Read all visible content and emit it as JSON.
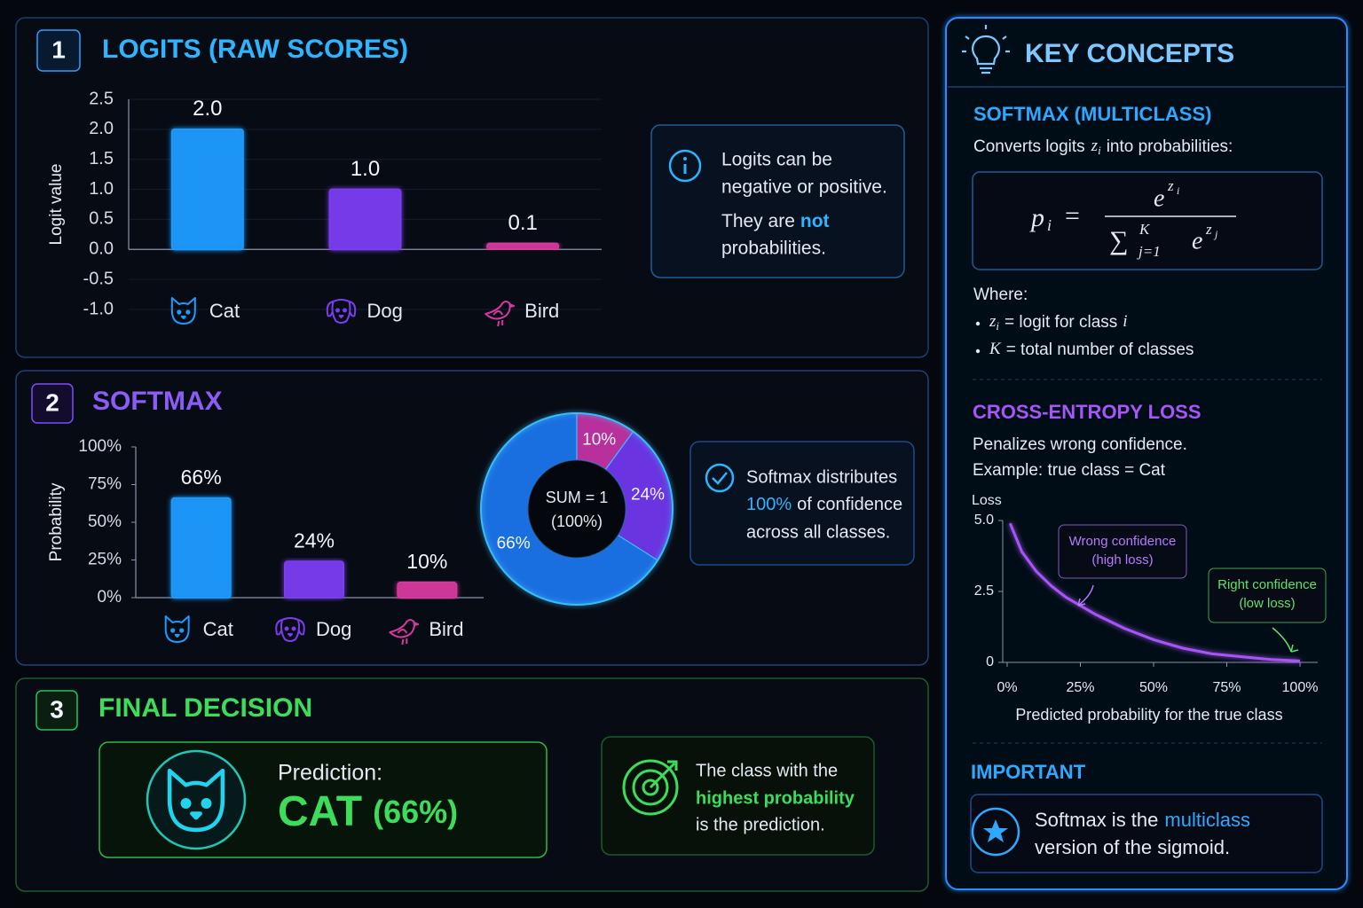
{
  "chart_data": [
    {
      "type": "bar",
      "step": "1",
      "title": "LOGITS (RAW SCORES)",
      "ylabel": "Logit value",
      "categories": [
        "Cat",
        "Dog",
        "Bird"
      ],
      "values": [
        2,
        1,
        0.1
      ],
      "value_labels": [
        "2.0",
        "1.0",
        "0.1"
      ],
      "colors": [
        "#1e9bff",
        "#7b3cf0",
        "#d6389e"
      ],
      "ylim": [
        -1,
        2.5
      ],
      "yticks": [
        {
          "value": -1,
          "label": "-1.0"
        },
        -0.5,
        {
          "value": 0,
          "label": "0.0"
        },
        0.5,
        {
          "value": 1,
          "label": "1.0"
        },
        1.5,
        {
          "value": 2,
          "label": "2.0"
        },
        2.5
      ],
      "grid": true
    },
    {
      "type": "bar",
      "step": "2",
      "title": "SOFTMAX",
      "ylabel": "Probability",
      "categories": [
        "Cat",
        "Dog",
        "Bird"
      ],
      "values": [
        66,
        24,
        10
      ],
      "value_labels": [
        "66%",
        "24%",
        "10%"
      ],
      "colors": [
        "#1e9bff",
        "#7b3cf0",
        "#d6389e"
      ],
      "ylim": [
        0,
        100
      ],
      "yticks": [
        {
          "value": 0,
          "label": "0%"
        },
        {
          "value": 25,
          "label": "25%"
        },
        {
          "value": 50,
          "label": "50%"
        },
        {
          "value": 75,
          "label": "75%"
        },
        {
          "value": 100,
          "label": "100%"
        }
      ],
      "grid": false
    },
    {
      "type": "pie",
      "values": [
        66,
        24,
        10
      ],
      "value_labels": [
        "66%",
        "24%",
        "10%"
      ],
      "colors": [
        "#1a6fe0",
        "#6a35e0",
        "#b8309c"
      ],
      "center_label": [
        "SUM = 1",
        "(100%)"
      ]
    },
    {
      "type": "line",
      "title": "CROSS-ENTROPY LOSS",
      "subtitle": [
        "Penalizes wrong confidence.",
        "Example: true class = Cat"
      ],
      "ylabel": "Loss",
      "xlabel": "Predicted probability for the true class",
      "x": [
        1,
        5,
        10,
        15,
        20,
        25,
        30,
        40,
        50,
        60,
        70,
        80,
        90,
        100
      ],
      "values": [
        4.9,
        3.9,
        3.2,
        2.7,
        2.3,
        2.0,
        1.7,
        1.2,
        0.8,
        0.5,
        0.3,
        0.2,
        0.1,
        0.05
      ],
      "color": "#a855f7",
      "xlim": [
        0,
        100
      ],
      "ylim": [
        0,
        5
      ],
      "xticks": [
        {
          "value": 0,
          "label": "0%"
        },
        {
          "value": 25,
          "label": "25%"
        },
        {
          "value": 50,
          "label": "50%"
        },
        {
          "value": 75,
          "label": "75%"
        },
        {
          "value": 100,
          "label": "100%"
        }
      ],
      "yticks": [
        0,
        2.5,
        {
          "value": 5,
          "label": "5.0"
        }
      ],
      "annotations": [
        {
          "lines": [
            "Wrong confidence",
            "(high loss)"
          ],
          "color": "#b57bff"
        },
        {
          "lines": [
            "Right confidence",
            "(low loss)"
          ],
          "color": "#5ee06d"
        }
      ]
    }
  ],
  "notes": {
    "logits": {
      "lines": [
        "Logits can be",
        "negative or positive."
      ],
      "pre": "They are",
      "emphasis": "not",
      "post": "probabilities."
    },
    "softmax": {
      "line1": "Softmax distributes",
      "emphasis": "100%",
      "rest": "of confidence",
      "line3": "across all classes."
    },
    "decision": {
      "step": "3",
      "title": "FINAL DECISION",
      "label": "Prediction:",
      "prediction": "CAT",
      "probability": "(66%)",
      "rule": [
        "The class with the",
        "highest probability",
        "is the prediction."
      ]
    }
  },
  "key_concepts": {
    "title": "KEY CONCEPTS",
    "softmax": {
      "heading": "SOFTMAX (MULTICLASS)",
      "intro_pre": "Converts logits",
      "intro_var": "z",
      "intro_sub": "i",
      "intro_post": "into probabilities:",
      "formula": {
        "lhs": "p",
        "lhs_sub": "i",
        "eq": "=",
        "num": "e",
        "num_exp": "z",
        "num_exp_sub": "i",
        "sum": "∑",
        "sum_sup": "K",
        "sum_sub": "j=1",
        "den": "e",
        "den_exp": "z",
        "den_exp_sub": "j"
      },
      "where": "Where:",
      "bullets": [
        {
          "symbol": "z",
          "sub": "i",
          "text": "= logit for class",
          "var": "i"
        },
        {
          "symbol": "K",
          "text": "= total number of classes"
        }
      ]
    },
    "important": {
      "heading": "IMPORTANT",
      "pre": "Softmax is the",
      "emphasis": "multiclass",
      "post": "version of the sigmoid."
    }
  }
}
